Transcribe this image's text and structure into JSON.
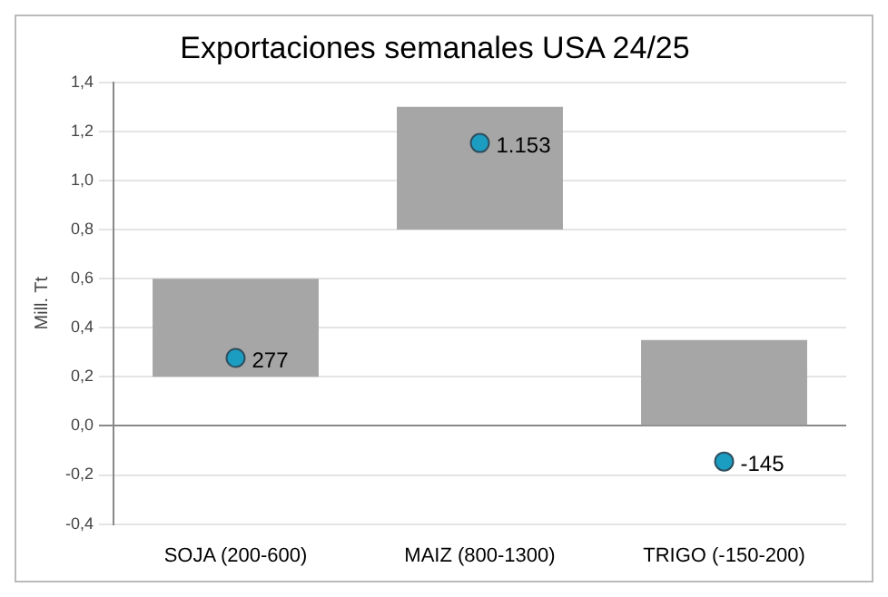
{
  "chart_data": {
    "type": "bar",
    "title": "Exportaciones semanales USA 24/25",
    "ylabel": "Mill. Tt",
    "categories": [
      "SOJA (200-600)",
      "MAIZ (800-1300)",
      "TRIGO (-150-200)"
    ],
    "series": [
      {
        "color": "#a6a6a6",
        "base": [
          0.2,
          0.8,
          0
        ],
        "values": [
          0.4,
          0.5,
          0.35
        ]
      },
      {
        "type": "scatter",
        "color": "#1b9dc2",
        "x": [
          "SOJA (200-600)",
          "MAIZ (800-1300)",
          "TRIGO (-150-200)"
        ],
        "values": [
          0.277,
          1.153,
          -0.145
        ]
      }
    ],
    "annotations": [
      {
        "text": "277",
        "x": "SOJA (200-600)",
        "y": 0.277
      },
      {
        "text": "1.153",
        "x": "MAIZ (800-1300)",
        "y": 1.153
      },
      {
        "text": "-145",
        "x": "TRIGO (-150-200)",
        "y": -0.145
      }
    ],
    "ylim": [
      -0.4,
      1.4
    ],
    "yticks": [
      {
        "value": -0.4,
        "label": "-0,4"
      },
      {
        "value": -0.2,
        "label": "-0,2"
      },
      {
        "value": 0,
        "label": "0,0"
      },
      {
        "value": 0.2,
        "label": "0,2"
      },
      {
        "value": 0.4,
        "label": "0,4"
      },
      {
        "value": 0.6,
        "label": "0,6"
      },
      {
        "value": 0.8,
        "label": "0,8"
      },
      {
        "value": 1.0,
        "label": "1,0"
      },
      {
        "value": 1.2,
        "label": "1,2"
      },
      {
        "value": 1.4,
        "label": "1,4"
      }
    ],
    "grid": "y",
    "marker": "circle",
    "legend": false
  }
}
